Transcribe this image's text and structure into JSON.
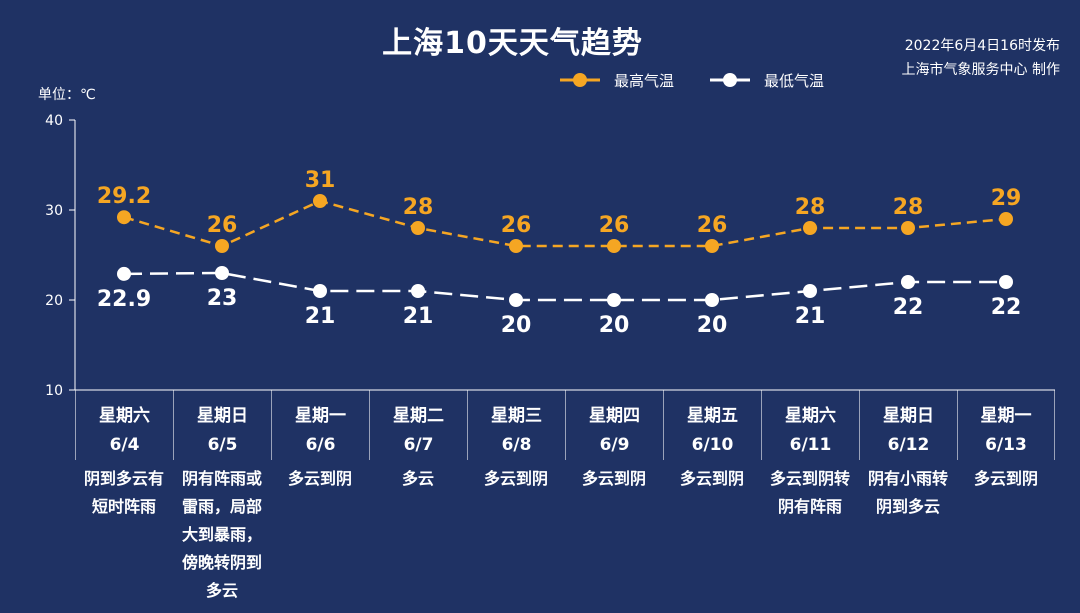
{
  "title": "上海10天天气趋势",
  "publish": {
    "line1": "2022年6月4日16时发布",
    "line2": "上海市气象服务中心 制作"
  },
  "colors": {
    "background": "#1f3264",
    "high": "#f5a623",
    "low": "#ffffff"
  },
  "chart_data": {
    "type": "line",
    "ylabel": "单位：℃",
    "ylim": [
      10,
      40
    ],
    "yticks": [
      10,
      20,
      30,
      40
    ],
    "grid": false,
    "legend_position": "top-right",
    "categories": [
      "6/4",
      "6/5",
      "6/6",
      "6/7",
      "6/8",
      "6/9",
      "6/10",
      "6/11",
      "6/12",
      "6/13"
    ],
    "series": [
      {
        "name": "最高气温",
        "values": [
          29.2,
          26,
          31,
          28,
          26,
          26,
          26,
          28,
          28,
          29
        ],
        "labels": [
          "29.2",
          "26",
          "31",
          "28",
          "26",
          "26",
          "26",
          "28",
          "28",
          "29"
        ]
      },
      {
        "name": "最低气温",
        "values": [
          22.9,
          23,
          21,
          21,
          20,
          20,
          20,
          21,
          22,
          22
        ],
        "labels": [
          "22.9",
          "23",
          "21",
          "21",
          "20",
          "20",
          "20",
          "21",
          "22",
          "22"
        ]
      }
    ]
  },
  "days": [
    {
      "weekday": "星期六",
      "date": "6/4",
      "weather": "阴到多云有短时阵雨"
    },
    {
      "weekday": "星期日",
      "date": "6/5",
      "weather": "阴有阵雨或雷雨，局部大到暴雨，傍晚转阴到多云"
    },
    {
      "weekday": "星期一",
      "date": "6/6",
      "weather": "多云到阴"
    },
    {
      "weekday": "星期二",
      "date": "6/7",
      "weather": "多云"
    },
    {
      "weekday": "星期三",
      "date": "6/8",
      "weather": "多云到阴"
    },
    {
      "weekday": "星期四",
      "date": "6/9",
      "weather": "多云到阴"
    },
    {
      "weekday": "星期五",
      "date": "6/10",
      "weather": "多云到阴"
    },
    {
      "weekday": "星期六",
      "date": "6/11",
      "weather": "多云到阴转阴有阵雨"
    },
    {
      "weekday": "星期日",
      "date": "6/12",
      "weather": "阴有小雨转阴到多云"
    },
    {
      "weekday": "星期一",
      "date": "6/13",
      "weather": "多云到阴"
    }
  ]
}
